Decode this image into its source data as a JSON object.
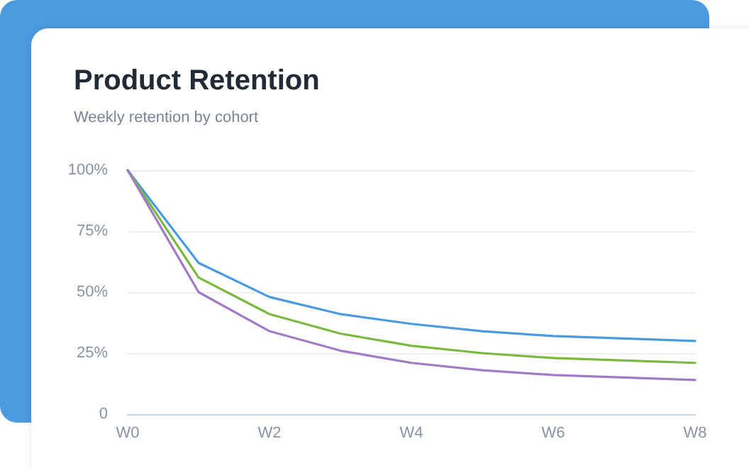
{
  "chart_data": {
    "type": "line",
    "title": "Product Retention",
    "subtitle": "Weekly retention by cohort",
    "categories": [
      "W0",
      null,
      "W2",
      null,
      "W4",
      null,
      "W6",
      null,
      "W8"
    ],
    "series": [
      {
        "color": "#4a9ae0",
        "values": [
          100,
          62,
          48,
          41,
          37,
          34,
          32,
          31,
          30
        ]
      },
      {
        "color": "#7ab840",
        "values": [
          100,
          56,
          41,
          33,
          28,
          25,
          23,
          22,
          21
        ]
      },
      {
        "color": "#a07cc5",
        "values": [
          100,
          50,
          34,
          26,
          21,
          18,
          16,
          15,
          14
        ]
      }
    ],
    "ylim": [
      0,
      100
    ],
    "yticks": [
      {
        "value": 0,
        "label": "0"
      },
      {
        "value": 25,
        "label": "25%"
      },
      {
        "value": 50,
        "label": "50%"
      },
      {
        "value": 75,
        "label": "75%"
      },
      {
        "value": 100,
        "label": "100%"
      }
    ],
    "grid": "y",
    "marker": "none",
    "line_style": "solid"
  }
}
